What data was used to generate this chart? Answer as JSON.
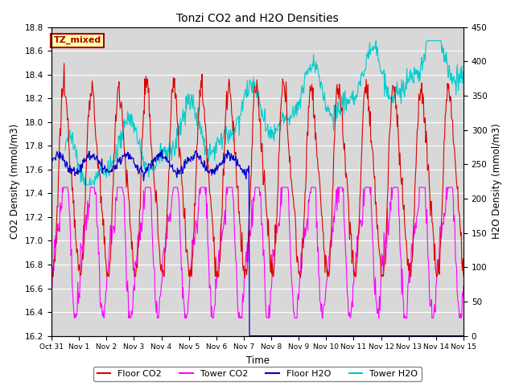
{
  "title": "Tonzi CO2 and H2O Densities",
  "xlabel": "Time",
  "ylabel_left": "CO2 Density (mmol/m3)",
  "ylabel_right": "H2O Density (mmol/m3)",
  "ylim_left": [
    16.2,
    18.8
  ],
  "ylim_right": [
    0,
    450
  ],
  "yticks_left": [
    16.2,
    16.4,
    16.6,
    16.8,
    17.0,
    17.2,
    17.4,
    17.6,
    17.8,
    18.0,
    18.2,
    18.4,
    18.6,
    18.8
  ],
  "yticks_right": [
    0,
    50,
    100,
    150,
    200,
    250,
    300,
    350,
    400,
    450
  ],
  "xtick_labels": [
    "Oct 31",
    "Nov 1",
    "Nov 2",
    "Nov 3",
    "Nov 4",
    "Nov 5",
    "Nov 6",
    "Nov 7",
    "Nov 8",
    "Nov 9",
    "Nov 10",
    "Nov 11",
    "Nov 12",
    "Nov 13",
    "Nov 14",
    "Nov 15"
  ],
  "annotation_text": "TZ_mixed",
  "annotation_color": "#aa0000",
  "annotation_bg": "#ffffaa",
  "colors": {
    "floor_co2": "#dd0000",
    "tower_co2": "#ff00ff",
    "floor_h2o": "#0000cc",
    "tower_h2o": "#00cccc"
  },
  "legend_labels": [
    "Floor CO2",
    "Tower CO2",
    "Floor H2O",
    "Tower H2O"
  ],
  "background_color": "#d8d8d8",
  "grid_color": "#ffffff"
}
